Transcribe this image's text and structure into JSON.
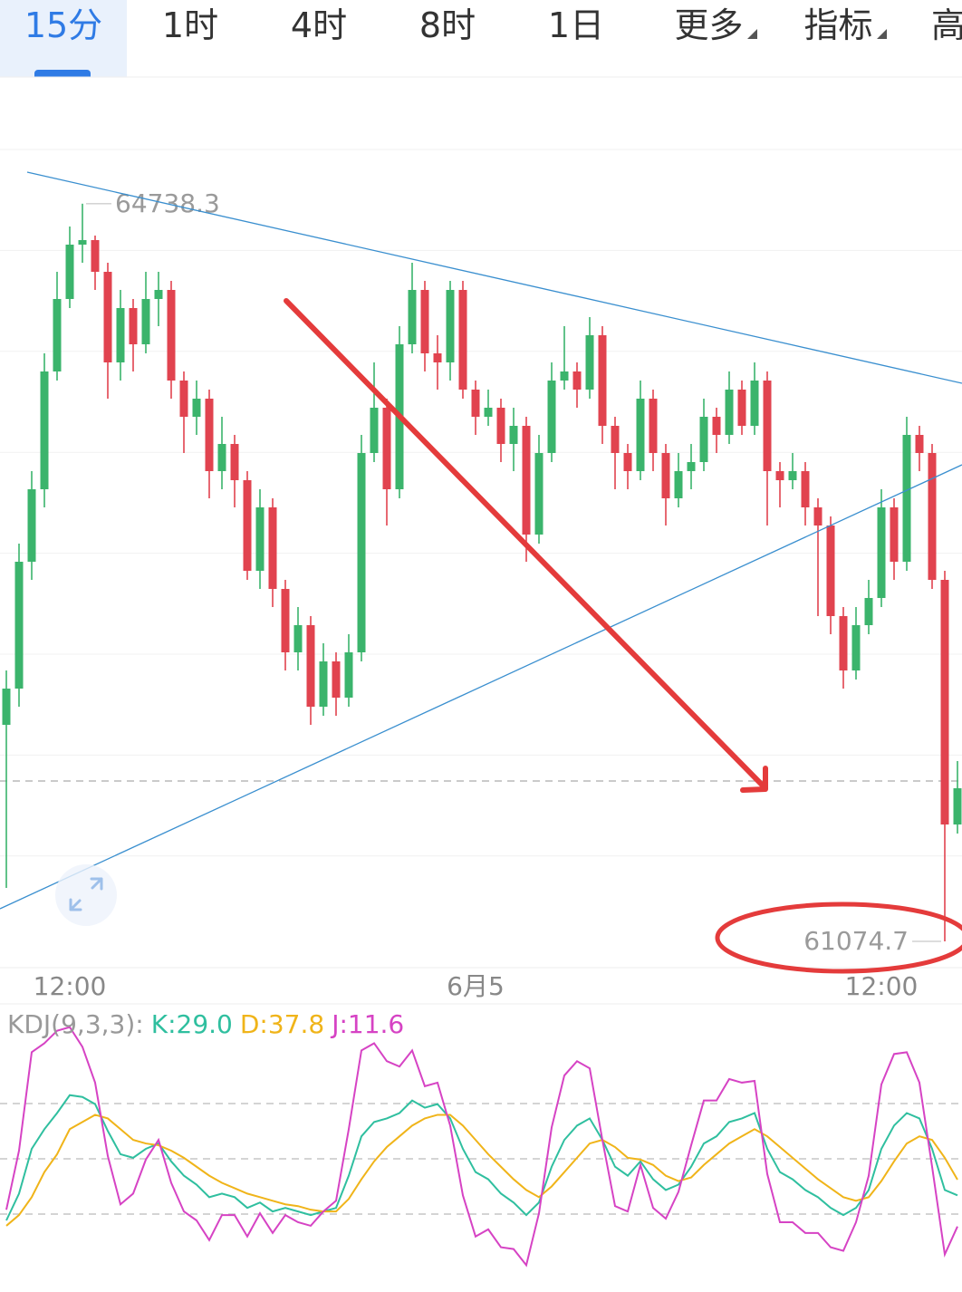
{
  "tabs": [
    "15分",
    "1时",
    "4时",
    "8时",
    "1日",
    "更多",
    "指标",
    "高"
  ],
  "active_tab": 0,
  "chart_data": [
    {
      "type": "candlestick",
      "categories": [
        null,
        null,
        null,
        null,
        null,
        "12:00",
        null,
        null,
        null,
        null,
        null,
        null,
        null,
        null,
        null,
        null,
        null,
        null,
        null,
        null,
        null,
        null,
        null,
        null,
        null,
        null,
        null,
        null,
        null,
        null,
        null,
        null,
        null,
        null,
        null,
        null,
        null,
        "6月5",
        null,
        null,
        null,
        null,
        null,
        null,
        null,
        null,
        null,
        null,
        null,
        null,
        null,
        null,
        null,
        null,
        null,
        null,
        null,
        null,
        null,
        null,
        null,
        null,
        null,
        null,
        null,
        null,
        null,
        null,
        null,
        "12:00",
        null,
        null,
        null,
        null,
        null,
        null
      ],
      "open": [
        62150,
        62330,
        62960,
        63320,
        63905,
        64265,
        64535,
        64557.5,
        64400,
        63950,
        64220,
        64040,
        64265,
        64310,
        63860,
        63680,
        63770,
        63410,
        63545,
        63365,
        62915,
        63230,
        62825,
        62510,
        62645,
        62240,
        62465,
        62285,
        62510,
        63500,
        63725,
        63320,
        64040,
        64310,
        63995,
        63950,
        64310,
        63815,
        63680,
        63725,
        63545,
        63635,
        63095,
        63500,
        63860,
        63905,
        63815,
        64085,
        63635,
        63500,
        63410,
        63770,
        63500,
        63275,
        63410,
        63455,
        63680,
        63590,
        63815,
        63635,
        63860,
        63410,
        63365,
        63410,
        63230,
        63140,
        62690,
        62420,
        62645,
        62780,
        63230,
        62960,
        63590,
        63500,
        62870,
        61655
      ],
      "high": [
        62420,
        63050,
        63410,
        63995,
        64400,
        64625,
        64738.3,
        64580,
        64445,
        64310,
        64265,
        64400,
        64400,
        64355,
        63905,
        63860,
        63815,
        63680,
        63590,
        63410,
        63320,
        63275,
        62870,
        62735,
        62690,
        62555,
        62510,
        62600,
        63590,
        63950,
        63770,
        64130,
        64445,
        64355,
        64085,
        64355,
        64355,
        63860,
        63815,
        63770,
        63725,
        63680,
        63590,
        63950,
        64130,
        63950,
        64175,
        64130,
        63680,
        63545,
        63860,
        63815,
        63545,
        63500,
        63545,
        63770,
        63725,
        63905,
        63860,
        63950,
        63905,
        63455,
        63500,
        63455,
        63275,
        63185,
        62735,
        62735,
        62870,
        63320,
        63275,
        63680,
        63635,
        63545,
        62915,
        61970
      ],
      "low": [
        61340,
        62240,
        62870,
        63230,
        63860,
        64220,
        64445,
        64310,
        63770,
        63860,
        63905,
        63995,
        64130,
        63770,
        63500,
        63590,
        63275,
        63320,
        63230,
        62870,
        62825,
        62735,
        62420,
        62420,
        62150,
        62195,
        62195,
        62240,
        62465,
        63455,
        63140,
        63275,
        63995,
        63905,
        63815,
        63860,
        63770,
        63590,
        63635,
        63455,
        63410,
        62960,
        63050,
        63455,
        63815,
        63725,
        63770,
        63545,
        63320,
        63320,
        63365,
        63410,
        63140,
        63230,
        63320,
        63410,
        63500,
        63545,
        63590,
        63590,
        63140,
        63230,
        63320,
        63140,
        62690,
        62600,
        62330,
        62375,
        62600,
        62735,
        62870,
        62915,
        63410,
        62825,
        61074.7,
        61610
      ],
      "close": [
        62330,
        62960,
        63320,
        63905,
        64265,
        64535,
        64557.5,
        64400,
        63950,
        64220,
        64040,
        64265,
        64310,
        63860,
        63680,
        63770,
        63410,
        63545,
        63365,
        62915,
        63230,
        62825,
        62510,
        62645,
        62240,
        62465,
        62285,
        62510,
        63500,
        63725,
        63320,
        64040,
        64310,
        63995,
        63950,
        64310,
        63815,
        63680,
        63725,
        63545,
        63635,
        63095,
        63500,
        63860,
        63905,
        63815,
        64085,
        63635,
        63500,
        63410,
        63770,
        63500,
        63275,
        63410,
        63455,
        63680,
        63590,
        63815,
        63635,
        63860,
        63410,
        63365,
        63410,
        63230,
        63140,
        62690,
        62420,
        62645,
        62780,
        63230,
        62960,
        63590,
        63500,
        62870,
        61655,
        61835
      ],
      "up_color": "#3bb46c",
      "down_color": "#e1434f",
      "ylim": [
        60944,
        65367.5
      ],
      "grid": true
    },
    {
      "type": "line",
      "title": "KDJ(9,3,3):",
      "ylim": [
        -25,
        135
      ],
      "series": [
        {
          "name": "K",
          "legend_label": "K:29.0",
          "color": "#2fbf9f",
          "values": [
            15,
            30,
            55,
            66,
            75,
            85,
            84,
            80,
            65,
            52,
            50,
            55,
            58,
            48,
            40,
            35,
            28,
            30,
            28,
            22,
            25,
            20,
            22,
            20,
            18,
            20,
            22,
            40,
            62,
            70,
            72,
            75,
            82,
            78,
            80,
            72,
            55,
            42,
            38,
            30,
            25,
            18,
            25,
            45,
            60,
            68,
            72,
            60,
            45,
            40,
            48,
            38,
            32,
            35,
            45,
            58,
            62,
            70,
            72,
            75,
            55,
            42,
            38,
            32,
            28,
            22,
            18,
            22,
            32,
            55,
            68,
            75,
            72,
            55,
            32,
            29.0
          ]
        },
        {
          "name": "D",
          "legend_label": "D:37.8",
          "color": "#f0b419",
          "values": [
            12,
            18,
            28,
            42,
            52,
            66,
            70,
            74,
            72,
            66,
            60,
            58,
            57,
            54,
            50,
            45,
            40,
            36,
            33,
            30,
            28,
            26,
            24,
            23,
            21,
            20,
            20,
            27,
            38,
            48,
            56,
            62,
            68,
            72,
            74,
            74,
            68,
            60,
            52,
            45,
            38,
            32,
            28,
            34,
            42,
            50,
            58,
            60,
            56,
            50,
            49,
            46,
            40,
            37,
            39,
            46,
            52,
            58,
            62,
            66,
            62,
            56,
            50,
            44,
            38,
            33,
            28,
            26,
            28,
            37,
            48,
            58,
            62,
            60,
            50,
            37.8
          ]
        },
        {
          "name": "J",
          "legend_label": "J:11.6",
          "color": "#d643c4",
          "values": [
            21,
            54,
            109,
            114,
            121,
            123,
            112,
            92,
            51,
            24,
            30,
            49,
            60,
            36,
            20,
            15,
            4,
            18,
            18,
            6,
            19,
            8,
            18,
            14,
            12,
            20,
            26,
            66,
            110,
            114,
            104,
            101,
            110,
            90,
            92,
            68,
            29,
            6,
            10,
            0,
            -1,
            -10,
            19,
            67,
            96,
            104,
            100,
            60,
            23,
            20,
            46,
            22,
            16,
            31,
            57,
            82,
            82,
            94,
            92,
            93,
            41,
            14,
            14,
            8,
            8,
            0,
            -2,
            14,
            40,
            91,
            108,
            109,
            92,
            45,
            -4,
            11.6
          ]
        }
      ]
    }
  ]
}
